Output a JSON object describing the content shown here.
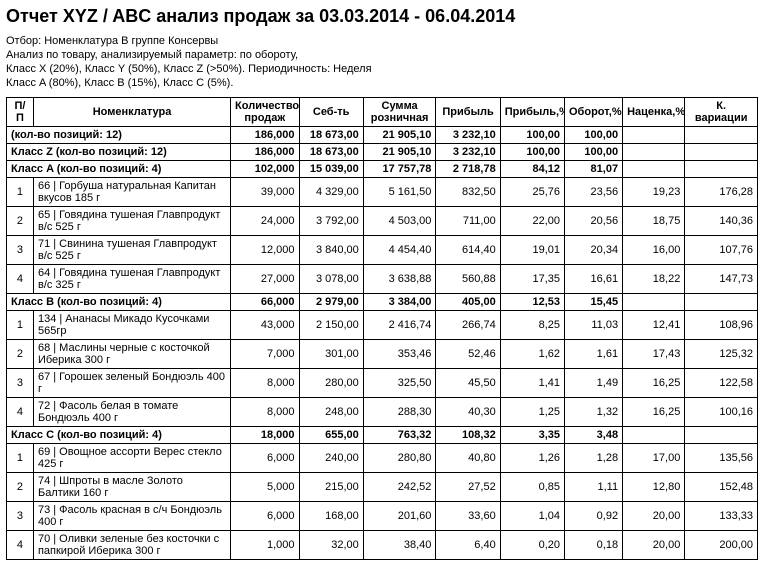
{
  "title": "Отчет XYZ / ABC анализ продаж за 03.03.2014 - 06.04.2014",
  "meta": [
    "Отбор: Номенклатура  В группе  Консервы",
    "Анализ по товару,  анализируемый параметр:  по обороту,",
    "Класс X (20%),  Класс Y (50%),  Класс Z (>50%). Периодичность: Неделя",
    "Класс A (80%),  Класс B (15%),  Класс C (5%)."
  ],
  "columns": [
    "П/П",
    "Номенклатура",
    "Количество продаж",
    "Себ-ть",
    "Сумма розничная",
    "Прибыль",
    "Прибыль,%",
    "Оборот,%",
    "Наценка,%",
    "К. вариации"
  ],
  "totals": {
    "label": "(кол-во позиций: 12)",
    "qty": "186,000",
    "cost": "18 673,00",
    "retail": "21 905,10",
    "profit": "3 232,10",
    "profitp": "100,00",
    "oborot": "100,00",
    "markup": "",
    "kvar": ""
  },
  "groups": [
    {
      "label": "Класс Z (кол-во позиций: 12)",
      "qty": "186,000",
      "cost": "18 673,00",
      "retail": "21 905,10",
      "profit": "3 232,10",
      "profitp": "100,00",
      "oborot": "100,00",
      "markup": "",
      "kvar": "",
      "subgroups": [
        {
          "label": "Класс A (кол-во позиций: 4)",
          "qty": "102,000",
          "cost": "15 039,00",
          "retail": "17 757,78",
          "profit": "2 718,78",
          "profitp": "84,12",
          "oborot": "81,07",
          "markup": "",
          "kvar": "",
          "items": [
            {
              "pp": "1",
              "name": "66 | Горбуша натуральная Капитан вкусов 185 г",
              "qty": "39,000",
              "cost": "4 329,00",
              "retail": "5 161,50",
              "profit": "832,50",
              "profitp": "25,76",
              "oborot": "23,56",
              "markup": "19,23",
              "kvar": "176,28"
            },
            {
              "pp": "2",
              "name": "65 | Говядина тушеная Главпродукт в/с 525 г",
              "qty": "24,000",
              "cost": "3 792,00",
              "retail": "4 503,00",
              "profit": "711,00",
              "profitp": "22,00",
              "oborot": "20,56",
              "markup": "18,75",
              "kvar": "140,36"
            },
            {
              "pp": "3",
              "name": "71 | Свинина тушеная Главпродукт в/с 525 г",
              "qty": "12,000",
              "cost": "3 840,00",
              "retail": "4 454,40",
              "profit": "614,40",
              "profitp": "19,01",
              "oborot": "20,34",
              "markup": "16,00",
              "kvar": "107,76"
            },
            {
              "pp": "4",
              "name": "64 | Говядина тушеная Главпродукт в/с 325 г",
              "qty": "27,000",
              "cost": "3 078,00",
              "retail": "3 638,88",
              "profit": "560,88",
              "profitp": "17,35",
              "oborot": "16,61",
              "markup": "18,22",
              "kvar": "147,73"
            }
          ]
        },
        {
          "label": "Класс B (кол-во позиций: 4)",
          "qty": "66,000",
          "cost": "2 979,00",
          "retail": "3 384,00",
          "profit": "405,00",
          "profitp": "12,53",
          "oborot": "15,45",
          "markup": "",
          "kvar": "",
          "items": [
            {
              "pp": "1",
              "name": "134 | Ананасы Микадо Кусочками 565гр",
              "qty": "43,000",
              "cost": "2 150,00",
              "retail": "2 416,74",
              "profit": "266,74",
              "profitp": "8,25",
              "oborot": "11,03",
              "markup": "12,41",
              "kvar": "108,96"
            },
            {
              "pp": "2",
              "name": "68 | Маслины черные с косточкой Иберика 300 г",
              "qty": "7,000",
              "cost": "301,00",
              "retail": "353,46",
              "profit": "52,46",
              "profitp": "1,62",
              "oborot": "1,61",
              "markup": "17,43",
              "kvar": "125,32"
            },
            {
              "pp": "3",
              "name": "67 | Горошек зеленый Бондюэль 400 г",
              "qty": "8,000",
              "cost": "280,00",
              "retail": "325,50",
              "profit": "45,50",
              "profitp": "1,41",
              "oborot": "1,49",
              "markup": "16,25",
              "kvar": "122,58"
            },
            {
              "pp": "4",
              "name": "72 | Фасоль белая в томате Бондюэль 400 г",
              "qty": "8,000",
              "cost": "248,00",
              "retail": "288,30",
              "profit": "40,30",
              "profitp": "1,25",
              "oborot": "1,32",
              "markup": "16,25",
              "kvar": "100,16"
            }
          ]
        },
        {
          "label": "Класс C (кол-во позиций: 4)",
          "qty": "18,000",
          "cost": "655,00",
          "retail": "763,32",
          "profit": "108,32",
          "profitp": "3,35",
          "oborot": "3,48",
          "markup": "",
          "kvar": "",
          "items": [
            {
              "pp": "1",
              "name": "69 | Овощное ассорти Верес стекло 425 г",
              "qty": "6,000",
              "cost": "240,00",
              "retail": "280,80",
              "profit": "40,80",
              "profitp": "1,26",
              "oborot": "1,28",
              "markup": "17,00",
              "kvar": "135,56"
            },
            {
              "pp": "2",
              "name": "74 | Шпроты в масле Золото Балтики 160 г",
              "qty": "5,000",
              "cost": "215,00",
              "retail": "242,52",
              "profit": "27,52",
              "profitp": "0,85",
              "oborot": "1,11",
              "markup": "12,80",
              "kvar": "152,48"
            },
            {
              "pp": "3",
              "name": "73 | Фасоль красная в с/ч Бондюэль 400 г",
              "qty": "6,000",
              "cost": "168,00",
              "retail": "201,60",
              "profit": "33,60",
              "profitp": "1,04",
              "oborot": "0,92",
              "markup": "20,00",
              "kvar": "133,33"
            },
            {
              "pp": "4",
              "name": "70 | Оливки зеленые без косточки с папкирой Иберика 300 г",
              "qty": "1,000",
              "cost": "32,00",
              "retail": "38,40",
              "profit": "6,40",
              "profitp": "0,20",
              "oborot": "0,18",
              "markup": "20,00",
              "kvar": "200,00"
            }
          ]
        }
      ]
    }
  ]
}
